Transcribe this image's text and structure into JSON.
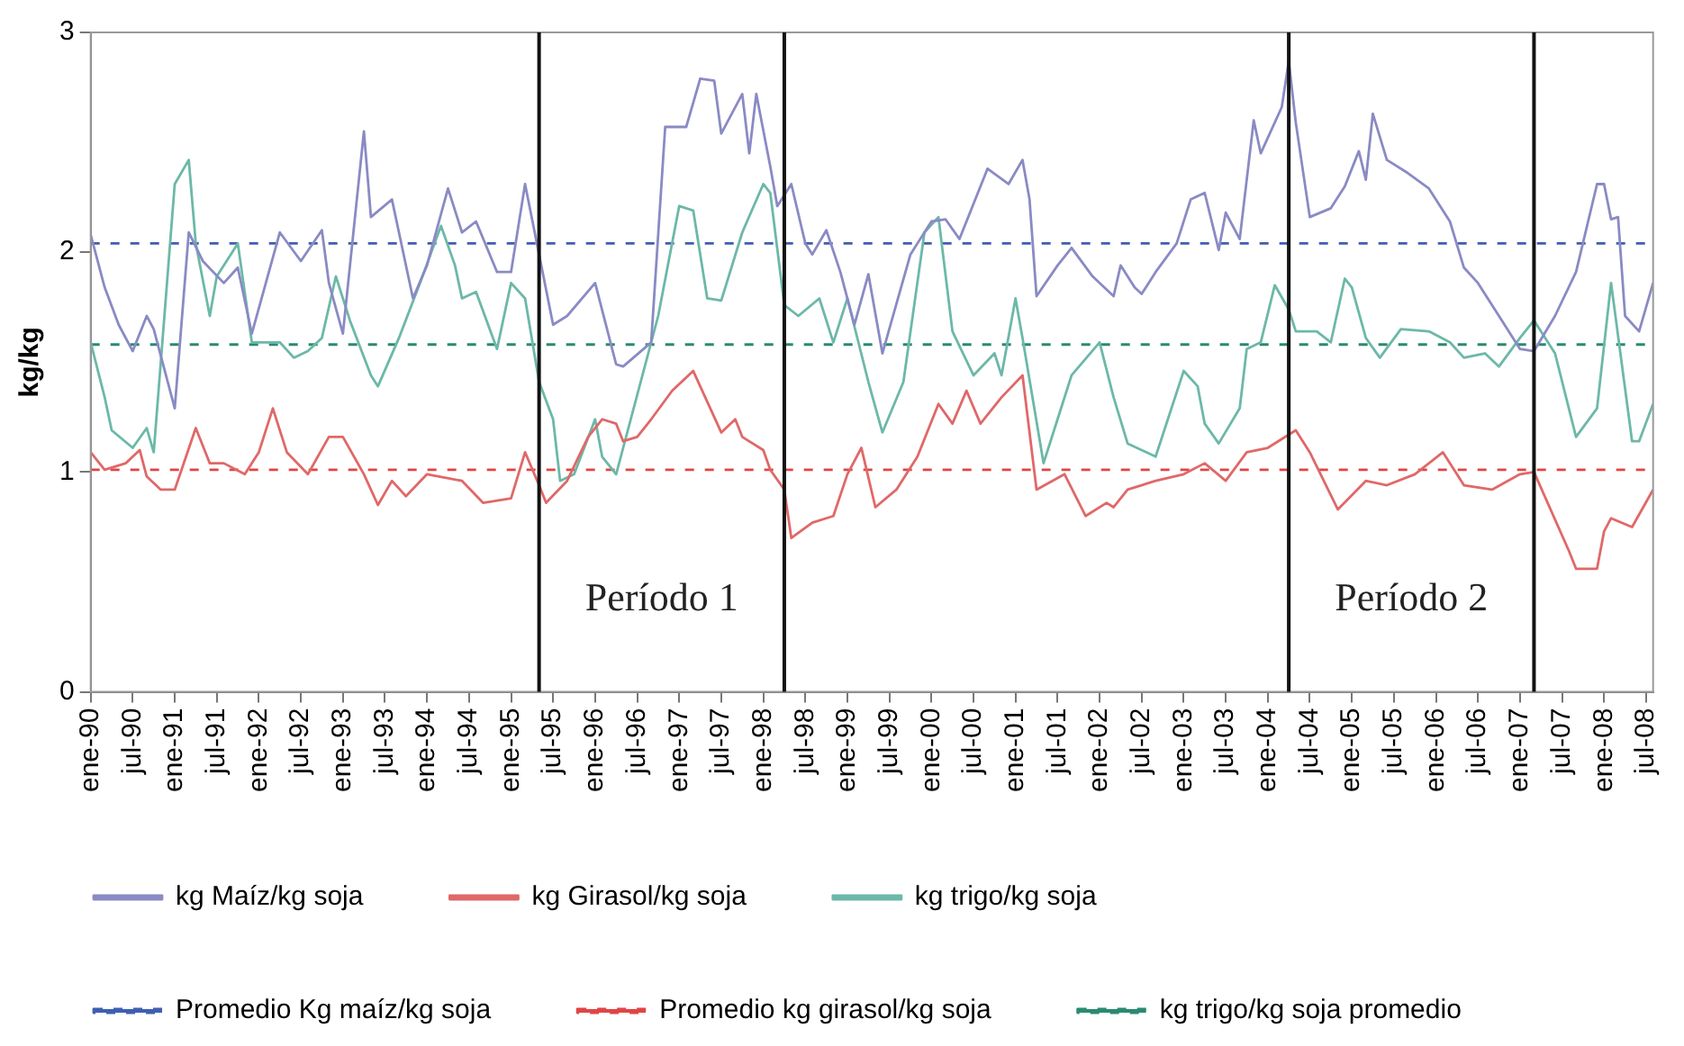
{
  "chart_data": {
    "type": "line",
    "ylabel": "kg/kg",
    "ylim": [
      0,
      3
    ],
    "yticks": [
      0,
      1,
      2,
      3
    ],
    "xlim": [
      "1990-01",
      "2008-08"
    ],
    "xticks": [
      {
        "value": "1990-01",
        "label": "ene-90"
      },
      {
        "value": "1990-07",
        "label": "jul-90"
      },
      {
        "value": "1991-01",
        "label": "ene-91"
      },
      {
        "value": "1991-07",
        "label": "jul-91"
      },
      {
        "value": "1992-01",
        "label": "ene-92"
      },
      {
        "value": "1992-07",
        "label": "jul-92"
      },
      {
        "value": "1993-01",
        "label": "ene-93"
      },
      {
        "value": "1993-07",
        "label": "jul-93"
      },
      {
        "value": "1994-01",
        "label": "ene-94"
      },
      {
        "value": "1994-07",
        "label": "jul-94"
      },
      {
        "value": "1995-01",
        "label": "ene-95"
      },
      {
        "value": "1995-07",
        "label": "jul-95"
      },
      {
        "value": "1996-01",
        "label": "ene-96"
      },
      {
        "value": "1996-07",
        "label": "jul-96"
      },
      {
        "value": "1997-01",
        "label": "ene-97"
      },
      {
        "value": "1997-07",
        "label": "jul-97"
      },
      {
        "value": "1998-01",
        "label": "ene-98"
      },
      {
        "value": "1998-07",
        "label": "jul-98"
      },
      {
        "value": "1999-01",
        "label": "ene-99"
      },
      {
        "value": "1999-07",
        "label": "jul-99"
      },
      {
        "value": "2000-01",
        "label": "ene-00"
      },
      {
        "value": "2000-07",
        "label": "jul-00"
      },
      {
        "value": "2001-01",
        "label": "ene-01"
      },
      {
        "value": "2001-07",
        "label": "jul-01"
      },
      {
        "value": "2002-01",
        "label": "ene-02"
      },
      {
        "value": "2002-07",
        "label": "jul-02"
      },
      {
        "value": "2003-01",
        "label": "ene-03"
      },
      {
        "value": "2003-07",
        "label": "jul-03"
      },
      {
        "value": "2004-01",
        "label": "ene-04"
      },
      {
        "value": "2004-07",
        "label": "jul-04"
      },
      {
        "value": "2005-01",
        "label": "ene-05"
      },
      {
        "value": "2005-07",
        "label": "jul-05"
      },
      {
        "value": "2006-01",
        "label": "ene-06"
      },
      {
        "value": "2006-07",
        "label": "jul-06"
      },
      {
        "value": "2007-01",
        "label": "ene-07"
      },
      {
        "value": "2007-07",
        "label": "jul-07"
      },
      {
        "value": "2008-01",
        "label": "ene-08"
      },
      {
        "value": "2008-07",
        "label": "jul-08"
      }
    ],
    "grid": false,
    "legend": "bottom",
    "marker": "none",
    "series": [
      {
        "name": "kg Maíz/kg soja",
        "color": "#8a8ac4",
        "line_style": "solid",
        "x": [
          "1990-01",
          "1990-03",
          "1990-05",
          "1990-07",
          "1990-09",
          "1990-10",
          "1991-01",
          "1991-03",
          "1991-05",
          "1991-08",
          "1991-10",
          "1991-12",
          "1992-04",
          "1992-07",
          "1992-10",
          "1992-11",
          "1993-01",
          "1993-04",
          "1993-05",
          "1993-08",
          "1993-11",
          "1994-01",
          "1994-04",
          "1994-06",
          "1994-08",
          "1994-11",
          "1995-01",
          "1995-03",
          "1995-05",
          "1995-07",
          "1995-09",
          "1996-01",
          "1996-04",
          "1996-05",
          "1996-09",
          "1996-11",
          "1997-02",
          "1997-04",
          "1997-06",
          "1997-07",
          "1997-10",
          "1997-11",
          "1997-12",
          "1998-02",
          "1998-03",
          "1998-05",
          "1998-07",
          "1998-08",
          "1998-10",
          "1998-12",
          "1999-02",
          "1999-04",
          "1999-06",
          "1999-10",
          "2000-01",
          "2000-03",
          "2000-05",
          "2000-09",
          "2000-12",
          "2001-02",
          "2001-03",
          "2001-04",
          "2001-07",
          "2001-09",
          "2001-12",
          "2002-03",
          "2002-04",
          "2002-06",
          "2002-07",
          "2002-09",
          "2002-12",
          "2003-02",
          "2003-04",
          "2003-06",
          "2003-07",
          "2003-09",
          "2003-11",
          "2003-12",
          "2004-03",
          "2004-04",
          "2004-05",
          "2004-07",
          "2004-10",
          "2004-12",
          "2005-02",
          "2005-03",
          "2005-04",
          "2005-06",
          "2005-09",
          "2005-12",
          "2006-03",
          "2006-05",
          "2006-07",
          "2006-10",
          "2007-01",
          "2007-03",
          "2007-06",
          "2007-09",
          "2007-12",
          "2008-01",
          "2008-02",
          "2008-03",
          "2008-04",
          "2008-06",
          "2008-08"
        ],
        "values": [
          2.08,
          1.84,
          1.67,
          1.55,
          1.71,
          1.65,
          1.29,
          2.09,
          1.96,
          1.86,
          1.93,
          1.63,
          2.09,
          1.96,
          2.1,
          1.86,
          1.63,
          2.55,
          2.16,
          2.24,
          1.79,
          1.94,
          2.29,
          2.09,
          2.14,
          1.91,
          1.91,
          2.31,
          1.99,
          1.67,
          1.71,
          1.86,
          1.49,
          1.48,
          1.59,
          2.57,
          2.57,
          2.79,
          2.78,
          2.54,
          2.72,
          2.45,
          2.72,
          2.39,
          2.21,
          2.31,
          2.04,
          1.99,
          2.1,
          1.91,
          1.67,
          1.9,
          1.54,
          1.99,
          2.14,
          2.15,
          2.06,
          2.38,
          2.31,
          2.42,
          2.24,
          1.8,
          1.94,
          2.02,
          1.89,
          1.8,
          1.94,
          1.84,
          1.81,
          1.91,
          2.04,
          2.24,
          2.27,
          2.01,
          2.18,
          2.06,
          2.6,
          2.45,
          2.66,
          2.87,
          2.59,
          2.16,
          2.2,
          2.3,
          2.46,
          2.33,
          2.63,
          2.42,
          2.36,
          2.29,
          2.14,
          1.93,
          1.86,
          1.71,
          1.56,
          1.55,
          1.71,
          1.91,
          2.31,
          2.31,
          2.15,
          2.16,
          1.71,
          1.64,
          1.86
        ]
      },
      {
        "name": "kg Girasol/kg soja",
        "color": "#e06868",
        "line_style": "solid",
        "x": [
          "1990-01",
          "1990-03",
          "1990-06",
          "1990-08",
          "1990-09",
          "1990-11",
          "1991-01",
          "1991-04",
          "1991-06",
          "1991-08",
          "1991-11",
          "1992-01",
          "1992-03",
          "1992-05",
          "1992-08",
          "1992-11",
          "1993-01",
          "1993-04",
          "1993-06",
          "1993-08",
          "1993-10",
          "1994-01",
          "1994-06",
          "1994-09",
          "1995-01",
          "1995-03",
          "1995-05",
          "1995-06",
          "1995-09",
          "1995-12",
          "1996-02",
          "1996-04",
          "1996-05",
          "1996-07",
          "1996-09",
          "1996-12",
          "1997-03",
          "1997-07",
          "1997-09",
          "1997-10",
          "1998-01",
          "1998-02",
          "1998-04",
          "1998-05",
          "1998-08",
          "1998-11",
          "1999-01",
          "1999-03",
          "1999-05",
          "1999-08",
          "1999-11",
          "2000-02",
          "2000-04",
          "2000-06",
          "2000-08",
          "2000-11",
          "2001-02",
          "2001-04",
          "2001-08",
          "2001-11",
          "2002-02",
          "2002-03",
          "2002-05",
          "2002-09",
          "2003-01",
          "2003-04",
          "2003-07",
          "2003-10",
          "2004-01",
          "2004-05",
          "2004-07",
          "2004-11",
          "2005-03",
          "2005-06",
          "2005-10",
          "2006-02",
          "2006-05",
          "2006-09",
          "2007-01",
          "2007-03",
          "2007-08",
          "2007-09",
          "2007-12",
          "2008-01",
          "2008-02",
          "2008-05",
          "2008-08"
        ],
        "values": [
          1.09,
          1.01,
          1.04,
          1.1,
          0.98,
          0.92,
          0.92,
          1.2,
          1.04,
          1.04,
          0.99,
          1.09,
          1.29,
          1.09,
          0.99,
          1.16,
          1.16,
          0.99,
          0.85,
          0.96,
          0.89,
          0.99,
          0.96,
          0.86,
          0.88,
          1.09,
          0.94,
          0.86,
          0.96,
          1.16,
          1.24,
          1.22,
          1.14,
          1.16,
          1.24,
          1.37,
          1.46,
          1.18,
          1.24,
          1.16,
          1.1,
          1.01,
          0.92,
          0.7,
          0.77,
          0.8,
          0.99,
          1.11,
          0.84,
          0.92,
          1.07,
          1.31,
          1.22,
          1.37,
          1.22,
          1.34,
          1.44,
          0.92,
          0.99,
          0.8,
          0.86,
          0.84,
          0.92,
          0.96,
          0.99,
          1.04,
          0.96,
          1.09,
          1.11,
          1.19,
          1.09,
          0.83,
          0.96,
          0.94,
          0.99,
          1.09,
          0.94,
          0.92,
          0.99,
          1.0,
          0.64,
          0.56,
          0.56,
          0.73,
          0.79,
          0.75,
          0.92
        ]
      },
      {
        "name": "kg trigo/kg soja",
        "color": "#6cb8a8",
        "line_style": "solid",
        "x": [
          "1990-01",
          "1990-03",
          "1990-04",
          "1990-07",
          "1990-09",
          "1990-10",
          "1991-01",
          "1991-03",
          "1991-04",
          "1991-06",
          "1991-07",
          "1991-09",
          "1991-10",
          "1991-12",
          "1992-04",
          "1992-06",
          "1992-08",
          "1992-10",
          "1992-12",
          "1993-02",
          "1993-05",
          "1993-06",
          "1993-09",
          "1993-12",
          "1994-03",
          "1994-05",
          "1994-06",
          "1994-08",
          "1994-11",
          "1995-01",
          "1995-03",
          "1995-05",
          "1995-07",
          "1995-08",
          "1995-10",
          "1996-01",
          "1996-02",
          "1996-04",
          "1996-10",
          "1997-01",
          "1997-03",
          "1997-05",
          "1997-07",
          "1997-10",
          "1998-01",
          "1998-02",
          "1998-04",
          "1998-06",
          "1998-09",
          "1998-11",
          "1999-01",
          "1999-04",
          "1999-06",
          "1999-09",
          "1999-12",
          "2000-02",
          "2000-04",
          "2000-07",
          "2000-10",
          "2000-11",
          "2001-01",
          "2001-02",
          "2001-05",
          "2001-07",
          "2001-09",
          "2002-01",
          "2002-03",
          "2002-05",
          "2002-09",
          "2003-01",
          "2003-03",
          "2003-04",
          "2003-06",
          "2003-09",
          "2003-10",
          "2003-12",
          "2004-02",
          "2004-04",
          "2004-05",
          "2004-08",
          "2004-10",
          "2004-12",
          "2005-01",
          "2005-03",
          "2005-05",
          "2005-08",
          "2005-12",
          "2006-03",
          "2006-05",
          "2006-08",
          "2006-10",
          "2007-01",
          "2007-03",
          "2007-06",
          "2007-09",
          "2007-12",
          "2008-02",
          "2008-05",
          "2008-06",
          "2008-08"
        ],
        "values": [
          1.59,
          1.34,
          1.19,
          1.11,
          1.2,
          1.09,
          2.31,
          2.42,
          2.04,
          1.71,
          1.89,
          1.99,
          2.04,
          1.59,
          1.59,
          1.52,
          1.55,
          1.61,
          1.89,
          1.69,
          1.44,
          1.39,
          1.61,
          1.86,
          2.12,
          1.94,
          1.79,
          1.82,
          1.56,
          1.86,
          1.79,
          1.41,
          1.24,
          0.96,
          0.99,
          1.24,
          1.07,
          0.99,
          1.71,
          2.21,
          2.19,
          1.79,
          1.78,
          2.09,
          2.31,
          2.27,
          1.76,
          1.71,
          1.79,
          1.59,
          1.79,
          1.41,
          1.18,
          1.41,
          2.09,
          2.16,
          1.64,
          1.44,
          1.54,
          1.44,
          1.79,
          1.61,
          1.04,
          1.24,
          1.44,
          1.59,
          1.34,
          1.13,
          1.07,
          1.46,
          1.39,
          1.22,
          1.13,
          1.29,
          1.56,
          1.59,
          1.85,
          1.74,
          1.64,
          1.64,
          1.59,
          1.88,
          1.84,
          1.61,
          1.52,
          1.65,
          1.64,
          1.59,
          1.52,
          1.54,
          1.48,
          1.61,
          1.69,
          1.54,
          1.16,
          1.29,
          1.86,
          1.14,
          1.14,
          1.31
        ]
      },
      {
        "name": "Promedio Kg maíz/kg soja",
        "color": "#3f5fb0",
        "line_style": "dashed",
        "x": [
          "1990-01",
          "2008-08"
        ],
        "values": [
          2.04,
          2.04
        ]
      },
      {
        "name": "Promedio kg girasol/kg soja",
        "color": "#e04545",
        "line_style": "dashed",
        "x": [
          "1990-01",
          "2008-08"
        ],
        "values": [
          1.01,
          1.01
        ]
      },
      {
        "name": "kg trigo/kg soja promedio",
        "color": "#2a8a72",
        "line_style": "dashed",
        "x": [
          "1990-01",
          "2008-08"
        ],
        "values": [
          1.58,
          1.58
        ]
      }
    ],
    "ref_lines": [
      {
        "axis": "x",
        "value": "1995-05",
        "color": "#111111"
      },
      {
        "axis": "x",
        "value": "1998-04",
        "color": "#111111"
      },
      {
        "axis": "x",
        "value": "2004-04",
        "color": "#111111"
      },
      {
        "axis": "x",
        "value": "2007-03",
        "color": "#111111"
      }
    ],
    "annotations": [
      "Período 1",
      "Período 2"
    ]
  }
}
